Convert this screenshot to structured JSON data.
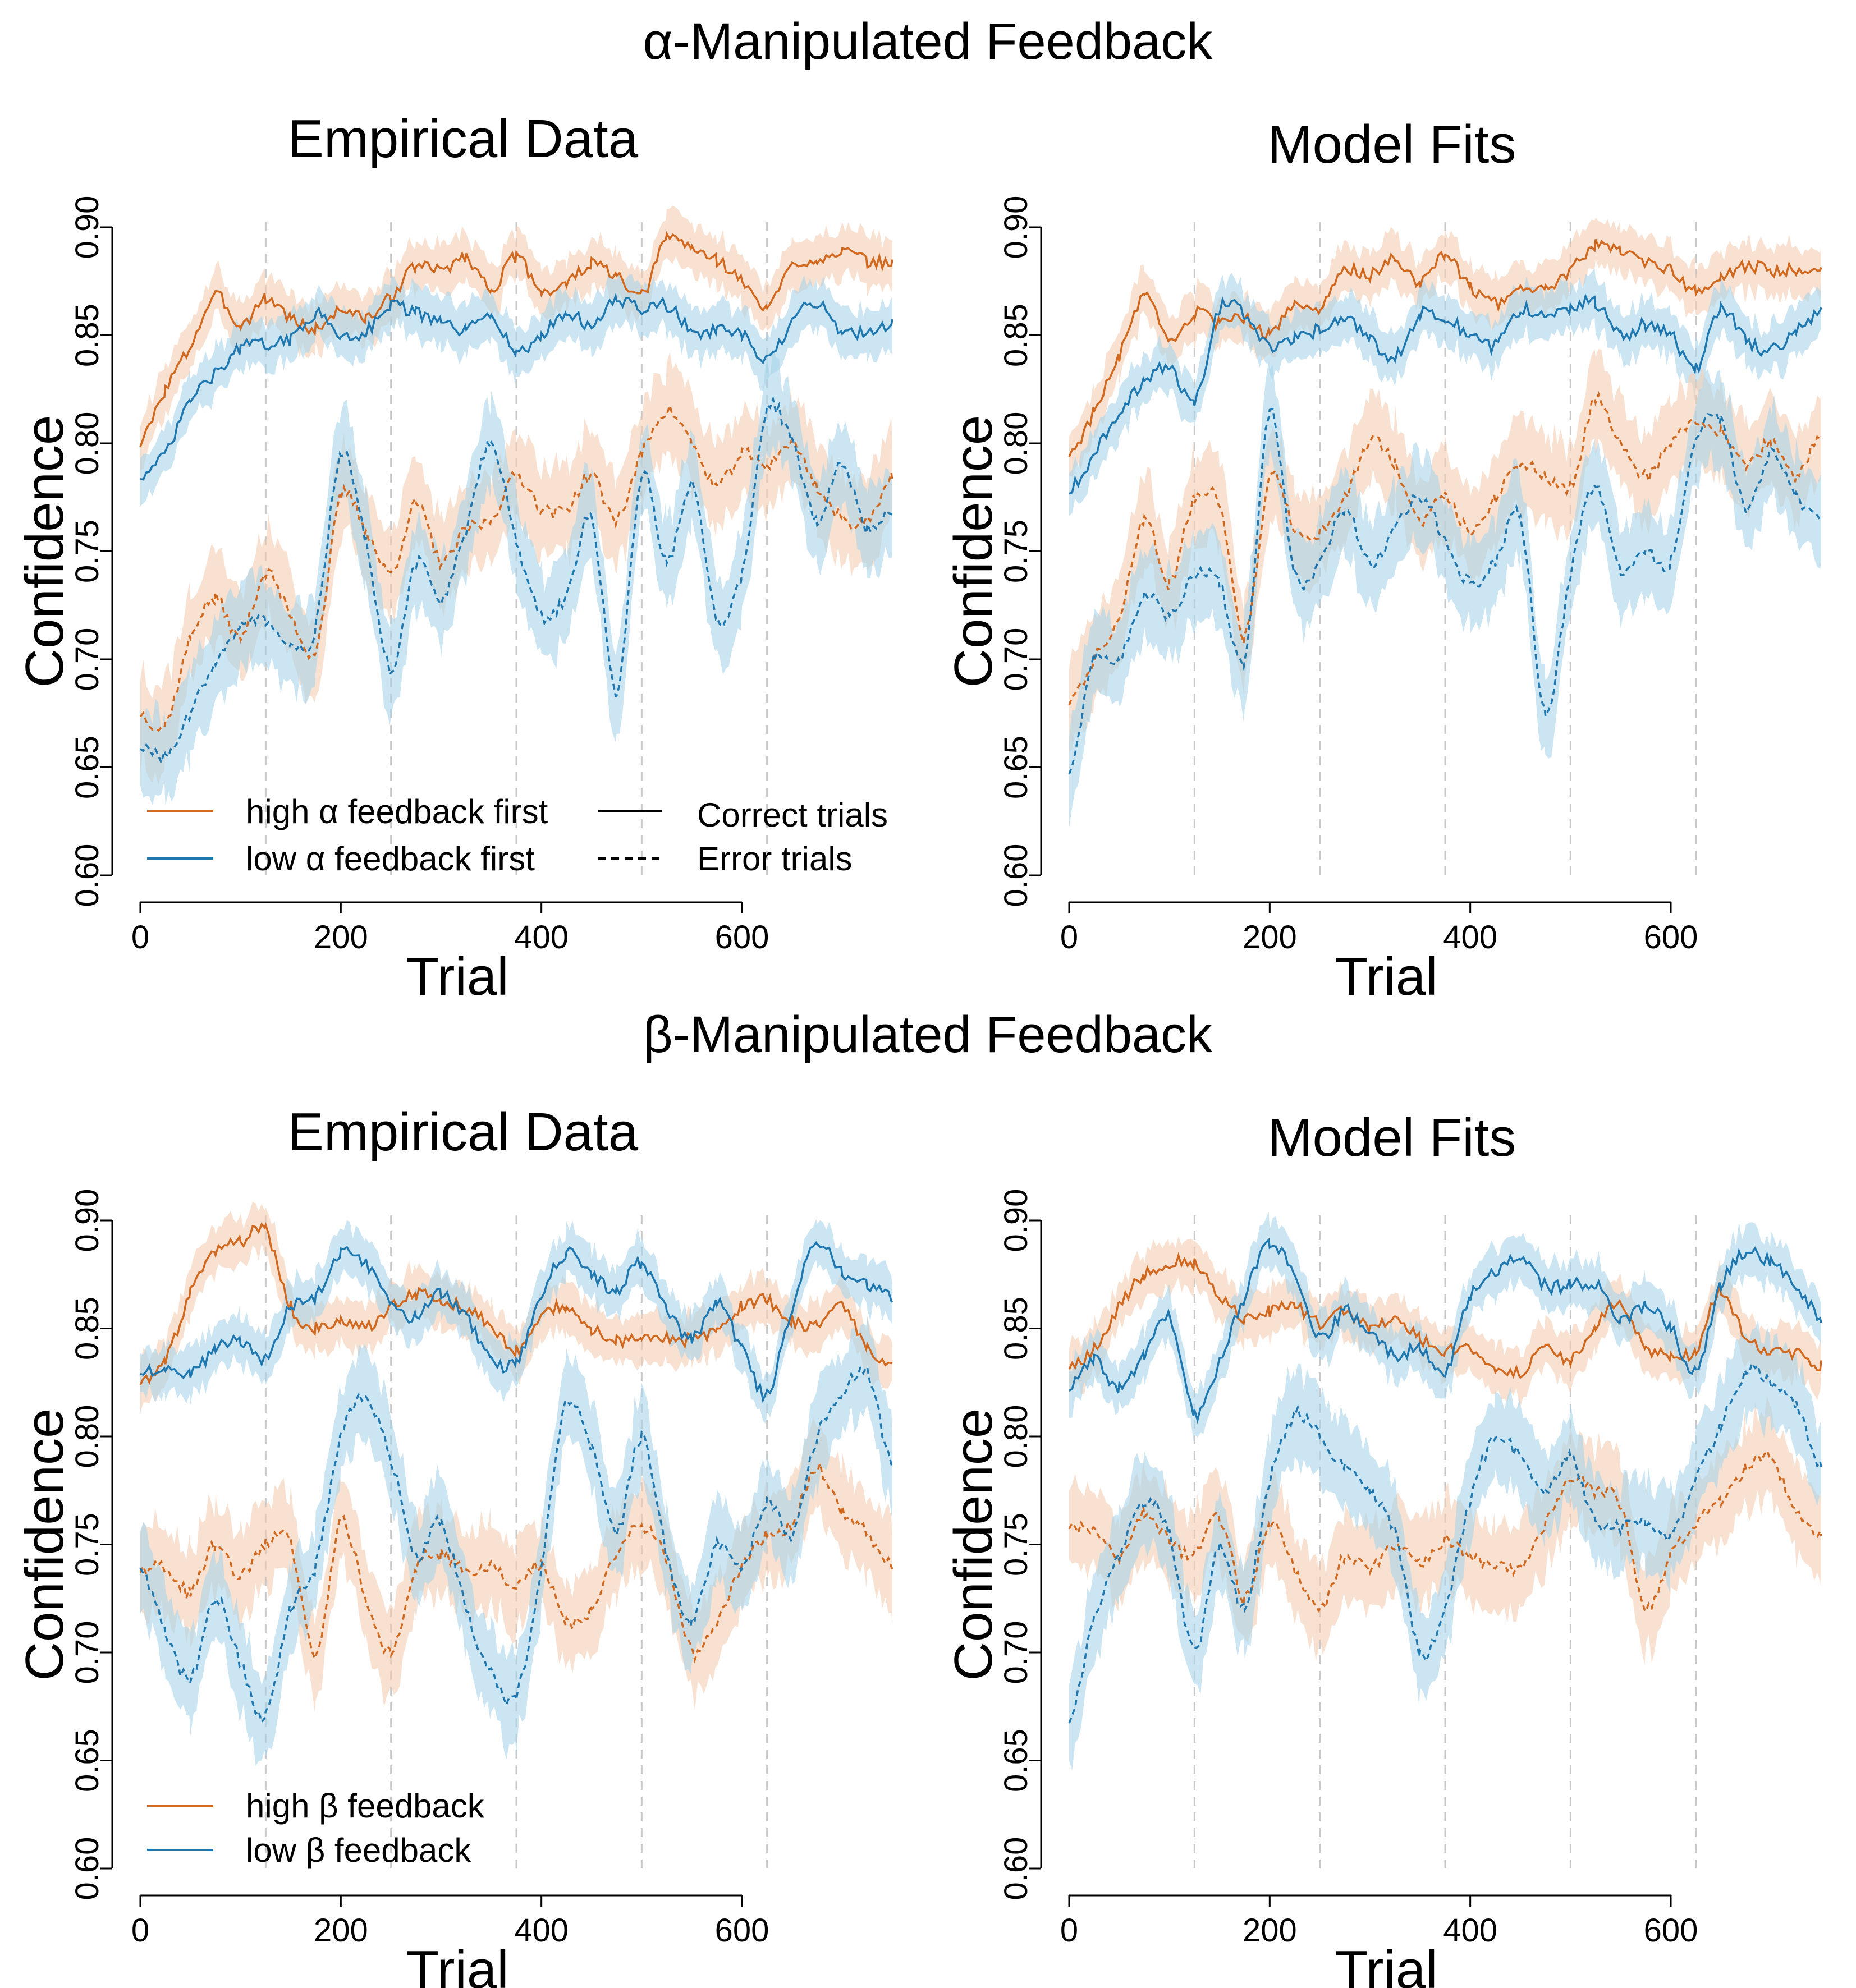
{
  "sections": [
    {
      "title": "α-Manipulated Feedback"
    },
    {
      "title": "β-Manipulated Feedback"
    }
  ],
  "panels": [
    {
      "title": "Empirical Data"
    },
    {
      "title": "Model Fits"
    },
    {
      "title": "Empirical Data"
    },
    {
      "title": "Model Fits"
    }
  ],
  "legend_alpha": {
    "conditions": [
      "high α feedback first",
      "low α feedback first"
    ],
    "trial_types": [
      "Correct trials",
      "Error trials"
    ]
  },
  "legend_beta": {
    "conditions": [
      "high β feedback",
      "low β feedback"
    ]
  },
  "colors": {
    "orange": "#d0681f",
    "blue": "#1f77b0",
    "orange_band": "#f5cdb2",
    "blue_band": "#a9d3ea",
    "divider": "#c8c8c8"
  },
  "chart_data": [
    {
      "type": "line",
      "title": "Empirical Data",
      "section": "α-Manipulated Feedback",
      "xlabel": "Trial",
      "ylabel": "Confidence",
      "xlim": [
        0,
        750
      ],
      "ylim": [
        0.6,
        0.9
      ],
      "xticks": [
        "0",
        "200",
        "400",
        "600"
      ],
      "yticks": [
        "0.60",
        "0.65",
        "0.70",
        "0.75",
        "0.80",
        "0.85",
        "0.90"
      ],
      "block_dividers": [
        125,
        250,
        375,
        500,
        625
      ],
      "x": [
        0,
        25,
        50,
        75,
        100,
        125,
        150,
        175,
        200,
        225,
        250,
        275,
        300,
        325,
        350,
        375,
        400,
        425,
        450,
        475,
        500,
        525,
        550,
        575,
        600,
        625,
        650,
        675,
        700,
        725,
        750
      ],
      "series": [
        {
          "name": "high α feedback first",
          "trials": "Correct trials",
          "values": [
            0.8,
            0.825,
            0.845,
            0.868,
            0.855,
            0.867,
            0.858,
            0.853,
            0.862,
            0.858,
            0.868,
            0.882,
            0.88,
            0.886,
            0.872,
            0.886,
            0.871,
            0.874,
            0.883,
            0.877,
            0.868,
            0.895,
            0.89,
            0.885,
            0.875,
            0.863,
            0.882,
            0.885,
            0.889,
            0.884,
            0.884
          ]
        },
        {
          "name": "low α feedback first",
          "trials": "Correct trials",
          "values": [
            0.785,
            0.795,
            0.82,
            0.832,
            0.844,
            0.846,
            0.848,
            0.86,
            0.85,
            0.852,
            0.864,
            0.86,
            0.856,
            0.852,
            0.86,
            0.842,
            0.85,
            0.86,
            0.855,
            0.866,
            0.862,
            0.864,
            0.852,
            0.852,
            0.85,
            0.838,
            0.856,
            0.865,
            0.852,
            0.852,
            0.855
          ]
        },
        {
          "name": "high α feedback first",
          "trials": "Error trials",
          "values": [
            0.675,
            0.67,
            0.71,
            0.728,
            0.71,
            0.74,
            0.72,
            0.705,
            0.775,
            0.76,
            0.74,
            0.772,
            0.745,
            0.76,
            0.765,
            0.785,
            0.77,
            0.77,
            0.785,
            0.765,
            0.795,
            0.815,
            0.8,
            0.78,
            0.795,
            0.79,
            0.8,
            0.78,
            0.765,
            0.765,
            0.785
          ]
        },
        {
          "name": "low α feedback first",
          "trials": "Error trials",
          "values": [
            0.66,
            0.655,
            0.675,
            0.7,
            0.715,
            0.718,
            0.705,
            0.715,
            0.795,
            0.755,
            0.695,
            0.745,
            0.728,
            0.76,
            0.8,
            0.755,
            0.72,
            0.73,
            0.765,
            0.685,
            0.785,
            0.745,
            0.78,
            0.72,
            0.74,
            0.815,
            0.8,
            0.765,
            0.79,
            0.76,
            0.77
          ]
        }
      ]
    },
    {
      "type": "line",
      "title": "Model Fits",
      "section": "α-Manipulated Feedback",
      "xlabel": "Trial",
      "ylabel": "Confidence",
      "xlim": [
        0,
        750
      ],
      "ylim": [
        0.6,
        0.9
      ],
      "xticks": [
        "0",
        "200",
        "400",
        "600"
      ],
      "yticks": [
        "0.60",
        "0.65",
        "0.70",
        "0.75",
        "0.80",
        "0.85",
        "0.90"
      ],
      "block_dividers": [
        125,
        250,
        375,
        500,
        625
      ],
      "x": [
        0,
        25,
        50,
        75,
        100,
        125,
        150,
        175,
        200,
        225,
        250,
        275,
        300,
        325,
        350,
        375,
        400,
        425,
        450,
        475,
        500,
        525,
        550,
        575,
        600,
        625,
        650,
        675,
        700,
        725,
        750
      ],
      "series": [
        {
          "name": "high α feedback first",
          "trials": "Correct trials",
          "values": [
            0.795,
            0.815,
            0.84,
            0.868,
            0.846,
            0.86,
            0.855,
            0.858,
            0.85,
            0.865,
            0.862,
            0.88,
            0.878,
            0.885,
            0.875,
            0.888,
            0.872,
            0.865,
            0.87,
            0.872,
            0.88,
            0.892,
            0.89,
            0.884,
            0.88,
            0.87,
            0.876,
            0.882,
            0.88,
            0.881,
            0.88
          ]
        },
        {
          "name": "low α feedback first",
          "trials": "Correct trials",
          "values": [
            0.778,
            0.795,
            0.815,
            0.828,
            0.835,
            0.82,
            0.862,
            0.86,
            0.845,
            0.848,
            0.853,
            0.858,
            0.848,
            0.84,
            0.86,
            0.858,
            0.85,
            0.845,
            0.862,
            0.858,
            0.862,
            0.865,
            0.85,
            0.855,
            0.85,
            0.835,
            0.862,
            0.848,
            0.843,
            0.852,
            0.86
          ]
        },
        {
          "name": "high α feedback first",
          "trials": "Error trials",
          "values": [
            0.68,
            0.7,
            0.72,
            0.765,
            0.735,
            0.775,
            0.77,
            0.71,
            0.785,
            0.76,
            0.758,
            0.775,
            0.8,
            0.79,
            0.765,
            0.775,
            0.76,
            0.775,
            0.79,
            0.785,
            0.78,
            0.82,
            0.8,
            0.785,
            0.8,
            0.81,
            0.805,
            0.79,
            0.8,
            0.785,
            0.805
          ]
        },
        {
          "name": "low α feedback first",
          "trials": "Error trials",
          "values": [
            0.648,
            0.7,
            0.7,
            0.73,
            0.72,
            0.74,
            0.735,
            0.7,
            0.815,
            0.74,
            0.745,
            0.77,
            0.745,
            0.76,
            0.775,
            0.755,
            0.735,
            0.745,
            0.765,
            0.675,
            0.74,
            0.78,
            0.74,
            0.75,
            0.745,
            0.8,
            0.81,
            0.77,
            0.795,
            0.775,
            0.765
          ]
        }
      ]
    },
    {
      "type": "line",
      "title": "Empirical Data",
      "section": "β-Manipulated Feedback",
      "xlabel": "Trial",
      "ylabel": "Confidence",
      "xlim": [
        0,
        750
      ],
      "ylim": [
        0.6,
        0.9
      ],
      "xticks": [
        "0",
        "200",
        "400",
        "600"
      ],
      "yticks": [
        "0.60",
        "0.65",
        "0.70",
        "0.75",
        "0.80",
        "0.85",
        "0.90"
      ],
      "block_dividers": [
        125,
        250,
        375,
        500,
        625
      ],
      "x": [
        0,
        25,
        50,
        75,
        100,
        125,
        150,
        175,
        200,
        225,
        250,
        275,
        300,
        325,
        350,
        375,
        400,
        425,
        450,
        475,
        500,
        525,
        550,
        575,
        600,
        625,
        650,
        675,
        700,
        725,
        750
      ],
      "series": [
        {
          "name": "high β feedback",
          "trials": "Correct trials",
          "values": [
            0.825,
            0.835,
            0.866,
            0.885,
            0.89,
            0.895,
            0.86,
            0.85,
            0.853,
            0.85,
            0.86,
            0.866,
            0.862,
            0.86,
            0.85,
            0.84,
            0.855,
            0.86,
            0.85,
            0.845,
            0.845,
            0.845,
            0.845,
            0.85,
            0.86,
            0.863,
            0.853,
            0.852,
            0.86,
            0.84,
            0.832
          ]
        },
        {
          "name": "low β feedback",
          "trials": "Correct trials",
          "values": [
            0.83,
            0.832,
            0.83,
            0.84,
            0.845,
            0.835,
            0.86,
            0.865,
            0.885,
            0.88,
            0.862,
            0.855,
            0.866,
            0.855,
            0.835,
            0.835,
            0.865,
            0.885,
            0.875,
            0.868,
            0.88,
            0.86,
            0.845,
            0.862,
            0.84,
            0.82,
            0.86,
            0.89,
            0.875,
            0.87,
            0.865
          ]
        },
        {
          "name": "high β feedback",
          "trials": "Error trials",
          "values": [
            0.738,
            0.74,
            0.728,
            0.75,
            0.735,
            0.75,
            0.75,
            0.7,
            0.76,
            0.725,
            0.7,
            0.74,
            0.745,
            0.738,
            0.74,
            0.73,
            0.74,
            0.715,
            0.72,
            0.745,
            0.758,
            0.742,
            0.7,
            0.715,
            0.74,
            0.755,
            0.76,
            0.785,
            0.765,
            0.755,
            0.74
          ]
        },
        {
          "name": "low β feedback",
          "trials": "Error trials",
          "values": [
            0.74,
            0.71,
            0.688,
            0.725,
            0.695,
            0.67,
            0.72,
            0.74,
            0.8,
            0.818,
            0.79,
            0.745,
            0.76,
            0.72,
            0.69,
            0.68,
            0.74,
            0.815,
            0.795,
            0.755,
            0.8,
            0.745,
            0.715,
            0.75,
            0.74,
            0.77,
            0.755,
            0.8,
            0.82,
            0.83,
            0.785
          ]
        }
      ]
    },
    {
      "type": "line",
      "title": "Model Fits",
      "section": "β-Manipulated Feedback",
      "xlabel": "Trial",
      "ylabel": "Confidence",
      "xlim": [
        0,
        750
      ],
      "ylim": [
        0.6,
        0.9
      ],
      "xticks": [
        "0",
        "200",
        "400",
        "600"
      ],
      "yticks": [
        "0.60",
        "0.65",
        "0.70",
        "0.75",
        "0.80",
        "0.85",
        "0.90"
      ],
      "block_dividers": [
        125,
        250,
        375,
        500,
        625
      ],
      "x": [
        0,
        25,
        50,
        75,
        100,
        125,
        150,
        175,
        200,
        225,
        250,
        275,
        300,
        325,
        350,
        375,
        400,
        425,
        450,
        475,
        500,
        525,
        550,
        575,
        600,
        625,
        650,
        675,
        700,
        725,
        750
      ],
      "series": [
        {
          "name": "high β feedback",
          "trials": "Correct trials",
          "values": [
            0.832,
            0.84,
            0.86,
            0.875,
            0.88,
            0.88,
            0.865,
            0.855,
            0.858,
            0.86,
            0.852,
            0.858,
            0.85,
            0.855,
            0.845,
            0.84,
            0.84,
            0.832,
            0.83,
            0.84,
            0.835,
            0.852,
            0.86,
            0.84,
            0.838,
            0.84,
            0.868,
            0.845,
            0.84,
            0.838,
            0.833
          ]
        },
        {
          "name": "low β feedback",
          "trials": "Correct trials",
          "values": [
            0.822,
            0.835,
            0.822,
            0.838,
            0.855,
            0.81,
            0.835,
            0.865,
            0.89,
            0.873,
            0.845,
            0.858,
            0.848,
            0.838,
            0.84,
            0.83,
            0.865,
            0.876,
            0.883,
            0.87,
            0.87,
            0.87,
            0.855,
            0.86,
            0.85,
            0.83,
            0.87,
            0.885,
            0.88,
            0.87,
            0.855
          ]
        },
        {
          "name": "high β feedback",
          "trials": "Error trials",
          "values": [
            0.758,
            0.755,
            0.745,
            0.765,
            0.752,
            0.745,
            0.762,
            0.725,
            0.76,
            0.738,
            0.72,
            0.745,
            0.738,
            0.75,
            0.74,
            0.752,
            0.744,
            0.74,
            0.74,
            0.76,
            0.78,
            0.775,
            0.768,
            0.72,
            0.745,
            0.76,
            0.77,
            0.785,
            0.79,
            0.765,
            0.755
          ]
        },
        {
          "name": "low β feedback",
          "trials": "Error trials",
          "values": [
            0.668,
            0.715,
            0.745,
            0.77,
            0.755,
            0.7,
            0.75,
            0.72,
            0.78,
            0.81,
            0.8,
            0.785,
            0.775,
            0.755,
            0.7,
            0.72,
            0.77,
            0.8,
            0.79,
            0.775,
            0.79,
            0.76,
            0.758,
            0.76,
            0.755,
            0.78,
            0.805,
            0.83,
            0.825,
            0.815,
            0.785
          ]
        }
      ]
    }
  ]
}
